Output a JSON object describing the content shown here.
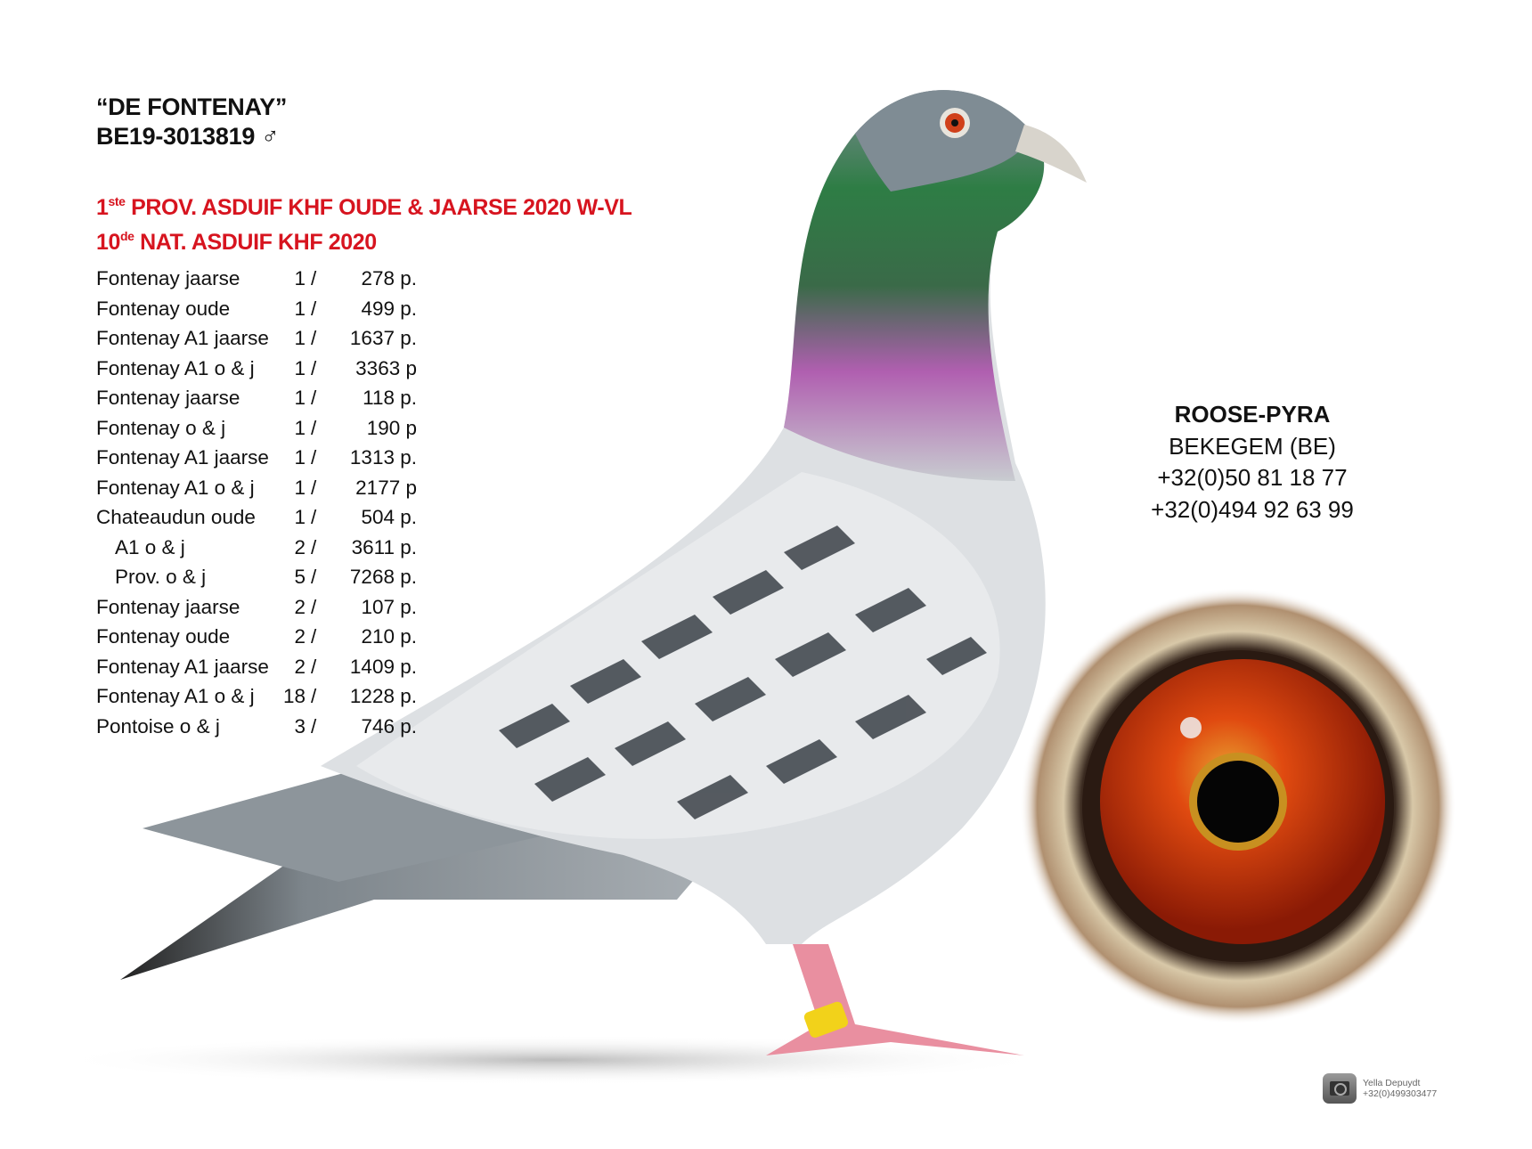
{
  "header": {
    "name": "“DE FONTENAY”",
    "ring": "BE19-3013819",
    "sex_symbol": "♂"
  },
  "titles": [
    {
      "num": "1",
      "sup": "ste",
      "text": " PROV. ASDUIF KHF OUDE & JAARSE 2020 W-VL"
    },
    {
      "num": "10",
      "sup": "de",
      "text": " NAT. ASDUIF KHF 2020"
    }
  ],
  "results": [
    {
      "race": "Fontenay jaarse",
      "rank": "1",
      "count": "278 p."
    },
    {
      "race": "Fontenay oude",
      "rank": "1",
      "count": "499 p."
    },
    {
      "race": "Fontenay A1 jaarse",
      "rank": "1",
      "count": "1637 p."
    },
    {
      "race": "Fontenay A1 o & j",
      "rank": "1",
      "count": "3363 p"
    },
    {
      "race": "Fontenay jaarse",
      "rank": "1",
      "count": "118 p."
    },
    {
      "race": "Fontenay o & j",
      "rank": "1",
      "count": "190 p"
    },
    {
      "race": "Fontenay A1 jaarse",
      "rank": "1",
      "count": "1313 p."
    },
    {
      "race": "Fontenay A1 o & j",
      "rank": "1",
      "count": "2177 p"
    },
    {
      "race": "Chateaudun oude",
      "rank": "1",
      "count": "504 p."
    },
    {
      "race": "A1 o & j",
      "rank": "2",
      "count": "3611 p.",
      "indent": true
    },
    {
      "race": "Prov. o & j",
      "rank": "5",
      "count": "7268 p.",
      "indent": true
    },
    {
      "race": "Fontenay jaarse",
      "rank": "2",
      "count": "107 p."
    },
    {
      "race": "Fontenay oude",
      "rank": "2",
      "count": "210 p."
    },
    {
      "race": "Fontenay A1 jaarse",
      "rank": "2",
      "count": "1409 p."
    },
    {
      "race": "Fontenay A1 o & j",
      "rank": "18",
      "count": "1228 p."
    },
    {
      "race": "Pontoise o & j",
      "rank": "3",
      "count": "746 p."
    }
  ],
  "separator": "/",
  "contact": {
    "name": "ROOSE-PYRA",
    "location": "BEKEGEM (BE)",
    "phone1": "+32(0)50 81 18 77",
    "phone2": "+32(0)494 92 63 99"
  },
  "credit": {
    "icon": "camera-icon",
    "photographer": "Yella Depuydt",
    "phone": "+32(0)499303477"
  },
  "colors": {
    "accent_red": "#d7141f",
    "text": "#111111"
  }
}
